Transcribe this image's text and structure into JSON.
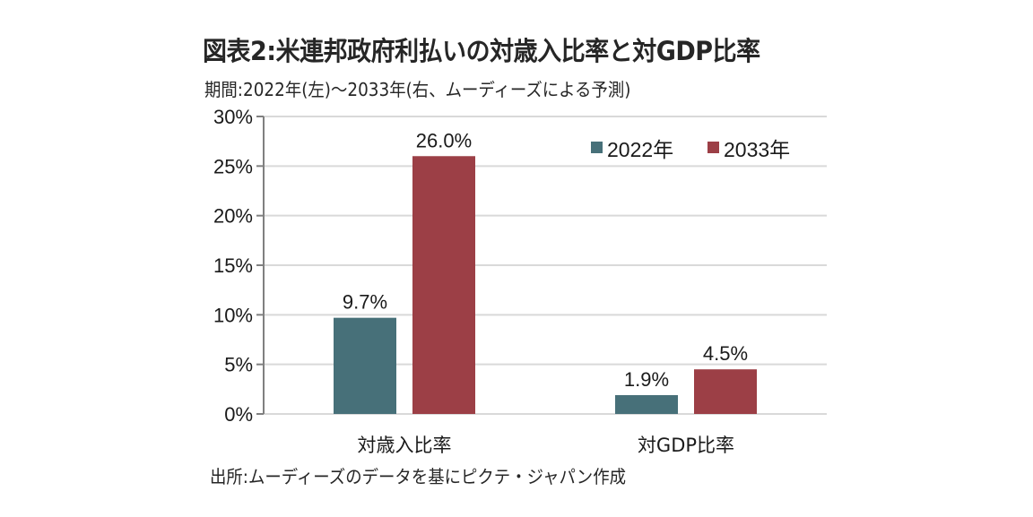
{
  "title": "図表2:米連邦政府利払いの対歳入比率と対GDP比率",
  "subtitle": "期間:2022年(左)～2033年(右、ムーディーズによる予測)",
  "source": "出所:ムーディーズのデータを基にピクテ・ジャパン作成",
  "chart_data": {
    "type": "bar",
    "title": "図表2:米連邦政府利払いの対歳入比率と対GDP比率",
    "subtitle": "期間:2022年(左)～2033年(右、ムーディーズによる予測)",
    "categories": [
      "対歳入比率",
      "対GDP比率"
    ],
    "series": [
      {
        "name": "2022年",
        "values": [
          9.7,
          1.9
        ],
        "labels": [
          "9.7%",
          "1.9%"
        ],
        "color": "#477079"
      },
      {
        "name": "2033年",
        "values": [
          26.0,
          4.5
        ],
        "labels": [
          "26.0%",
          "4.5%"
        ],
        "color": "#9c3f46"
      }
    ],
    "xlabel": "",
    "ylabel": "",
    "ylim": [
      0,
      30
    ],
    "yticks": [
      0,
      5,
      10,
      15,
      20,
      25,
      30
    ],
    "ytick_labels": [
      "0%",
      "5%",
      "10%",
      "15%",
      "20%",
      "25%",
      "30%"
    ],
    "grid": true,
    "legend_position": "top-right",
    "gridline_color": "#d9d9d9",
    "axis_color": "#808080"
  }
}
